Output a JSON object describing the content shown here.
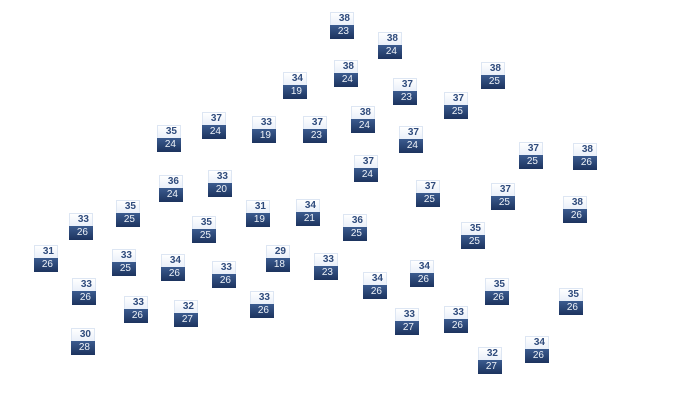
{
  "map": {
    "marker_colors": {
      "high_bg": "#ffffff",
      "high_text": "#2f4b7c",
      "low_bg": "#1c335e",
      "low_text": "#eef2f8"
    },
    "markers": [
      {
        "high": "38",
        "low": "23"
      },
      {
        "high": "38",
        "low": "24"
      },
      {
        "high": "34",
        "low": "19"
      },
      {
        "high": "38",
        "low": "24"
      },
      {
        "high": "37",
        "low": "23"
      },
      {
        "high": "38",
        "low": "25"
      },
      {
        "high": "37",
        "low": "25"
      },
      {
        "high": "37",
        "low": "24"
      },
      {
        "high": "33",
        "low": "19"
      },
      {
        "high": "37",
        "low": "23"
      },
      {
        "high": "38",
        "low": "24"
      },
      {
        "high": "35",
        "low": "24"
      },
      {
        "high": "37",
        "low": "24"
      },
      {
        "high": "37",
        "low": "25"
      },
      {
        "high": "38",
        "low": "26"
      },
      {
        "high": "37",
        "low": "24"
      },
      {
        "high": "36",
        "low": "24"
      },
      {
        "high": "33",
        "low": "20"
      },
      {
        "high": "37",
        "low": "25"
      },
      {
        "high": "37",
        "low": "25"
      },
      {
        "high": "38",
        "low": "26"
      },
      {
        "high": "35",
        "low": "25"
      },
      {
        "high": "31",
        "low": "19"
      },
      {
        "high": "34",
        "low": "21"
      },
      {
        "high": "33",
        "low": "26"
      },
      {
        "high": "35",
        "low": "25"
      },
      {
        "high": "36",
        "low": "25"
      },
      {
        "high": "35",
        "low": "25"
      },
      {
        "high": "31",
        "low": "26"
      },
      {
        "high": "33",
        "low": "25"
      },
      {
        "high": "34",
        "low": "26"
      },
      {
        "high": "29",
        "low": "18"
      },
      {
        "high": "33",
        "low": "23"
      },
      {
        "high": "33",
        "low": "26"
      },
      {
        "high": "34",
        "low": "26"
      },
      {
        "high": "34",
        "low": "26"
      },
      {
        "high": "33",
        "low": "26"
      },
      {
        "high": "35",
        "low": "26"
      },
      {
        "high": "35",
        "low": "26"
      },
      {
        "high": "33",
        "low": "26"
      },
      {
        "high": "32",
        "low": "27"
      },
      {
        "high": "33",
        "low": "26"
      },
      {
        "high": "33",
        "low": "27"
      },
      {
        "high": "33",
        "low": "26"
      },
      {
        "high": "30",
        "low": "28"
      },
      {
        "high": "32",
        "low": "27"
      },
      {
        "high": "34",
        "low": "26"
      }
    ]
  }
}
